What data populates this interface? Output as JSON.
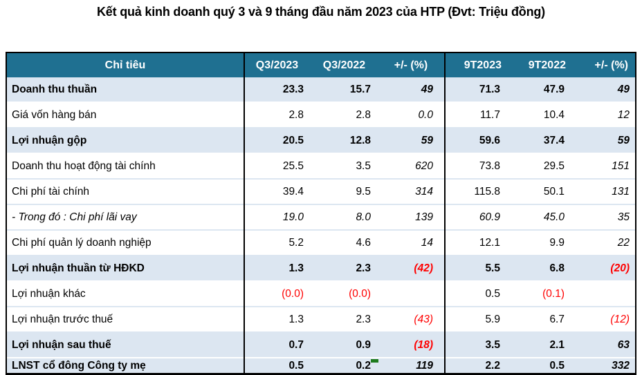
{
  "title": "Kết quả kinh doanh quý 3 và 9 tháng đầu năm 2023 của HTP (Đvt: Triệu đồng)",
  "chart_data": {
    "type": "table",
    "title": "Kết quả kinh doanh quý 3 và 9 tháng đầu năm 2023 của HTP (Đvt: Triệu đồng)",
    "unit": "Triệu đồng",
    "columns": [
      "Chỉ tiêu",
      "Q3/2023",
      "Q3/2022",
      "+/- (%)",
      "9T2023",
      "9T2022",
      "+/- (%)"
    ],
    "rows": [
      {
        "label": "Doanh thu thuần",
        "bold": true,
        "banded": true,
        "italic": false,
        "cells": [
          "23.3",
          "15.7",
          "49",
          "71.3",
          "47.9",
          "49"
        ]
      },
      {
        "label": "Giá vốn hàng bán",
        "bold": false,
        "banded": false,
        "italic": false,
        "cells": [
          "2.8",
          "2.8",
          "0.0",
          "11.7",
          "10.4",
          "12"
        ]
      },
      {
        "label": "Lợi nhuận gộp",
        "bold": true,
        "banded": true,
        "italic": false,
        "cells": [
          "20.5",
          "12.8",
          "59",
          "59.6",
          "37.4",
          "59"
        ]
      },
      {
        "label": "Doanh thu hoạt động tài chính",
        "bold": false,
        "banded": false,
        "italic": false,
        "cells": [
          "25.5",
          "3.5",
          "620",
          "73.8",
          "29.5",
          "151"
        ]
      },
      {
        "label": "Chi phí tài chính",
        "bold": false,
        "banded": false,
        "italic": false,
        "cells": [
          "39.4",
          "9.5",
          "314",
          "115.8",
          "50.1",
          "131"
        ]
      },
      {
        "label": "- Trong đó : Chi phí lãi vay",
        "bold": false,
        "banded": false,
        "italic": true,
        "cells": [
          "19.0",
          "8.0",
          "139",
          "60.9",
          "45.0",
          "35"
        ]
      },
      {
        "label": "Chi phí quản lý doanh nghiệp",
        "bold": false,
        "banded": false,
        "italic": false,
        "cells": [
          "5.2",
          "4.6",
          "14",
          "12.1",
          "9.9",
          "22"
        ]
      },
      {
        "label": "Lợi nhuận thuần từ HĐKD",
        "bold": true,
        "banded": true,
        "italic": false,
        "cells": [
          "1.3",
          "2.3",
          "(42)",
          "5.5",
          "6.8",
          "(20)"
        ]
      },
      {
        "label": "Lợi nhuận khác",
        "bold": false,
        "banded": false,
        "italic": false,
        "cells": [
          "(0.0)",
          "(0.0)",
          "",
          "0.5",
          "(0.1)",
          ""
        ]
      },
      {
        "label": "Lợi nhuận trước thuế",
        "bold": false,
        "banded": false,
        "italic": false,
        "cells": [
          "1.3",
          "2.3",
          "(43)",
          "5.9",
          "6.7",
          "(12)"
        ]
      },
      {
        "label": "Lợi nhuận sau thuế",
        "bold": true,
        "banded": true,
        "italic": false,
        "cells": [
          "0.7",
          "0.9",
          "(18)",
          "3.5",
          "2.1",
          "63"
        ]
      },
      {
        "label": "LNST cổ đông Công ty mẹ",
        "bold": true,
        "banded": true,
        "italic": false,
        "short": true,
        "cells": [
          "0.5",
          "0.2",
          "119",
          "2.2",
          "0.5",
          "332"
        ]
      }
    ]
  },
  "colors": {
    "header_bg": "#1F7091",
    "band_bg": "#DCE6F1",
    "border": "#000000",
    "negative": "#FF0000",
    "marker_green": "#1D7A1D"
  }
}
